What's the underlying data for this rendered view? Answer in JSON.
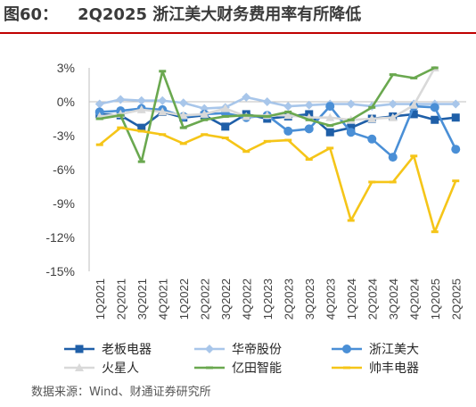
{
  "header": {
    "figure_no": "图60：",
    "title": "2Q2025 浙江美大财务费用率有所降低"
  },
  "source": "数据来源：Wind、财通证券研究所",
  "chart_data": {
    "type": "line",
    "title": "2Q2025 浙江美大财务费用率有所降低",
    "xlabel": "",
    "ylabel": "",
    "y_unit": "%",
    "ylim": [
      -15,
      3
    ],
    "y_ticks": [
      3,
      0,
      -3,
      -6,
      -9,
      -12,
      -15
    ],
    "y_tick_labels": [
      "3%",
      "0%",
      "-3%",
      "-6%",
      "-9%",
      "-12%",
      "-15%"
    ],
    "grid": false,
    "legend_position": "bottom",
    "categories": [
      "1Q2021",
      "2Q2021",
      "3Q2021",
      "4Q2021",
      "1Q2022",
      "2Q2022",
      "3Q2022",
      "4Q2022",
      "1Q2023",
      "2Q2023",
      "3Q2023",
      "4Q2023",
      "1Q2024",
      "2Q2024",
      "3Q2024",
      "4Q2024",
      "1Q2025",
      "2Q2025"
    ],
    "series": [
      {
        "name": "老板电器",
        "color": "#1f5fa8",
        "marker": "square",
        "values": [
          -1.1,
          -1.2,
          -2.3,
          -0.9,
          -1.4,
          -1.2,
          -2.2,
          -1.1,
          -1.5,
          -1.3,
          -1.1,
          -2.7,
          -2.3,
          -1.5,
          -1.3,
          -1.1,
          -1.6,
          -1.4
        ]
      },
      {
        "name": "华帝股份",
        "color": "#a8c6ea",
        "marker": "diamond",
        "values": [
          -0.2,
          0.2,
          0.1,
          0.1,
          -0.1,
          -0.6,
          -0.5,
          0.4,
          0.0,
          -0.4,
          -0.3,
          -0.2,
          -0.2,
          -0.4,
          -0.2,
          -0.2,
          -0.2,
          -0.2
        ]
      },
      {
        "name": "浙江美大",
        "color": "#4a8fd6",
        "marker": "circle",
        "values": [
          -0.9,
          -0.8,
          -0.6,
          -0.7,
          -1.3,
          -1.1,
          -1.0,
          -1.4,
          -1.2,
          -2.6,
          -2.4,
          -0.4,
          -2.7,
          -3.3,
          -4.9,
          -0.4,
          -0.5,
          -4.2
        ]
      },
      {
        "name": "火星人",
        "color": "#d9d9d9",
        "marker": "triangle",
        "values": [
          -1.3,
          -1.1,
          -0.7,
          -0.9,
          -1.2,
          -1.1,
          -0.6,
          -1.3,
          -1.2,
          -1.2,
          -1.4,
          -1.4,
          -1.6,
          -1.5,
          -1.4,
          -0.3,
          3.0,
          null
        ]
      },
      {
        "name": "亿田智能",
        "color": "#6aa84f",
        "marker": "dash",
        "values": [
          -1.5,
          -1.2,
          -5.3,
          2.7,
          -2.3,
          -1.6,
          -1.3,
          -1.2,
          -1.3,
          -0.9,
          -1.6,
          -2.1,
          -1.6,
          -0.5,
          2.4,
          2.1,
          3.0,
          null
        ]
      },
      {
        "name": "帅丰电器",
        "color": "#f5c518",
        "marker": "dash",
        "values": [
          -3.8,
          -2.3,
          -2.6,
          -2.9,
          -3.7,
          -2.9,
          -3.2,
          -4.4,
          -3.5,
          -3.4,
          -5.1,
          -4.1,
          -10.5,
          -7.1,
          -7.1,
          -4.8,
          -11.5,
          -7.0
        ]
      }
    ]
  }
}
